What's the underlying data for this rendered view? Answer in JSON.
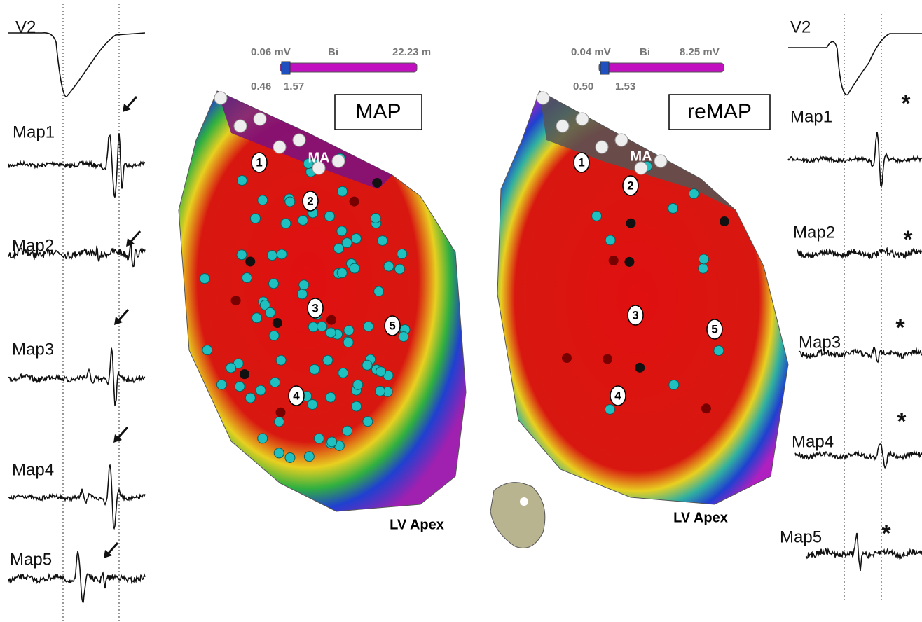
{
  "left_traces": {
    "labels": [
      "V2",
      "Map1",
      "Map2",
      "Map3",
      "Map4",
      "Map5"
    ]
  },
  "maps": [
    {
      "scale": {
        "min_label": "0.06 mV",
        "mode": "Bi",
        "max_label": "22.23 m",
        "low": "0.46",
        "high": "1.57"
      },
      "title": "MAP",
      "landmark": "MA",
      "sites": [
        "1",
        "2",
        "3",
        "4",
        "5"
      ],
      "apex_label": "LV Apex"
    },
    {
      "scale": {
        "min_label": "0.04 mV",
        "mode": "Bi",
        "max_label": "8.25 mV",
        "low": "0.50",
        "high": "1.53"
      },
      "title": "reMAP",
      "landmark": "MA",
      "sites": [
        "1",
        "2",
        "3",
        "4",
        "5"
      ],
      "apex_label": "LV Apex"
    }
  ],
  "right_traces": {
    "labels": [
      "V2",
      "Map1",
      "Map2",
      "Map3",
      "Map4",
      "Map5"
    ],
    "markers": [
      "*",
      "*",
      "*",
      "*",
      "*"
    ]
  }
}
